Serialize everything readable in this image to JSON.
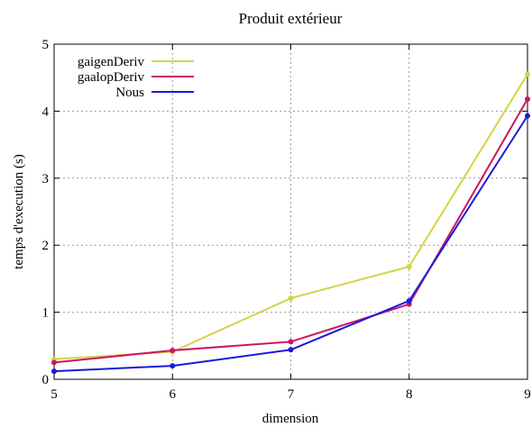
{
  "chart_data": {
    "type": "line",
    "title": "Produit extérieur",
    "xlabel": "dimension",
    "ylabel": "temps d'execution (s)",
    "x": [
      5,
      6,
      7,
      8,
      9
    ],
    "xlim": [
      5,
      9
    ],
    "ylim": [
      0,
      5
    ],
    "xticks": [
      "5",
      "6",
      "7",
      "8",
      "9"
    ],
    "yticks": [
      "0",
      "1",
      "2",
      "3",
      "4",
      "5"
    ],
    "grid": true,
    "legend_position": "top-left",
    "series": [
      {
        "name": "gaigenDeriv",
        "color": "#d4d445",
        "values": [
          0.3,
          0.41,
          1.21,
          1.68,
          4.55
        ]
      },
      {
        "name": "gaalopDeriv",
        "color": "#cc1466",
        "values": [
          0.25,
          0.43,
          0.56,
          1.12,
          4.18
        ]
      },
      {
        "name": "Nous",
        "color": "#1a1adb",
        "values": [
          0.12,
          0.2,
          0.44,
          1.17,
          3.93
        ]
      }
    ]
  }
}
